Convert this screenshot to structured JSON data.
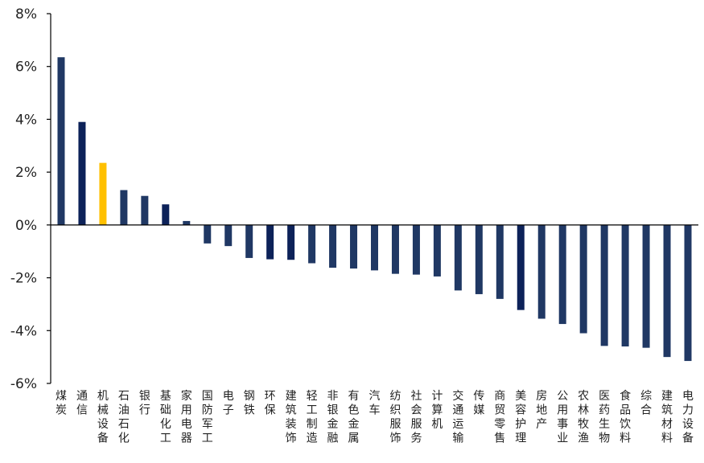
{
  "chart_data": {
    "type": "bar",
    "title": "",
    "xlabel": "",
    "ylabel": "",
    "ylim": [
      -6,
      8
    ],
    "yticks": [
      8,
      6,
      4,
      2,
      0,
      -2,
      -4,
      -6
    ],
    "ytick_labels": [
      "8%",
      "6%",
      "4%",
      "2%",
      "0%",
      "-2%",
      "-4%",
      "-6%"
    ],
    "grid": false,
    "legend": "none",
    "categories": [
      "煤炭",
      "通信",
      "机械设备",
      "石油石化",
      "银行",
      "基础化工",
      "家用电器",
      "国防军工",
      "电子",
      "钢铁",
      "环保",
      "建筑装饰",
      "轻工制造",
      "非银金融",
      "有色金属",
      "汽车",
      "纺织服饰",
      "社会服务",
      "计算机",
      "交通运输",
      "传媒",
      "商贸零售",
      "美容护理",
      "房地产",
      "公用事业",
      "农林牧渔",
      "医药生物",
      "食品饮料",
      "综合",
      "建筑材料",
      "电力设备"
    ],
    "values": [
      6.35,
      3.9,
      2.35,
      1.32,
      1.1,
      0.78,
      0.15,
      -0.7,
      -0.8,
      -1.25,
      -1.3,
      -1.32,
      -1.45,
      -1.62,
      -1.65,
      -1.72,
      -1.85,
      -1.88,
      -1.95,
      -2.48,
      -2.62,
      -2.8,
      -3.22,
      -3.55,
      -3.75,
      -4.1,
      -4.58,
      -4.6,
      -4.65,
      -5.0,
      -5.15
    ],
    "colors": {
      "default": "#203864",
      "dark": "#0d2259",
      "highlight": "#ffc000",
      "axis": "#000000"
    },
    "bar_color_keys": [
      "default",
      "dark",
      "highlight",
      "default",
      "default",
      "dark",
      "default",
      "default",
      "default",
      "default",
      "dark",
      "dark",
      "default",
      "default",
      "default",
      "default",
      "default",
      "default",
      "default",
      "default",
      "default",
      "default",
      "dark",
      "default",
      "default",
      "default",
      "default",
      "default",
      "default",
      "default",
      "default"
    ]
  }
}
